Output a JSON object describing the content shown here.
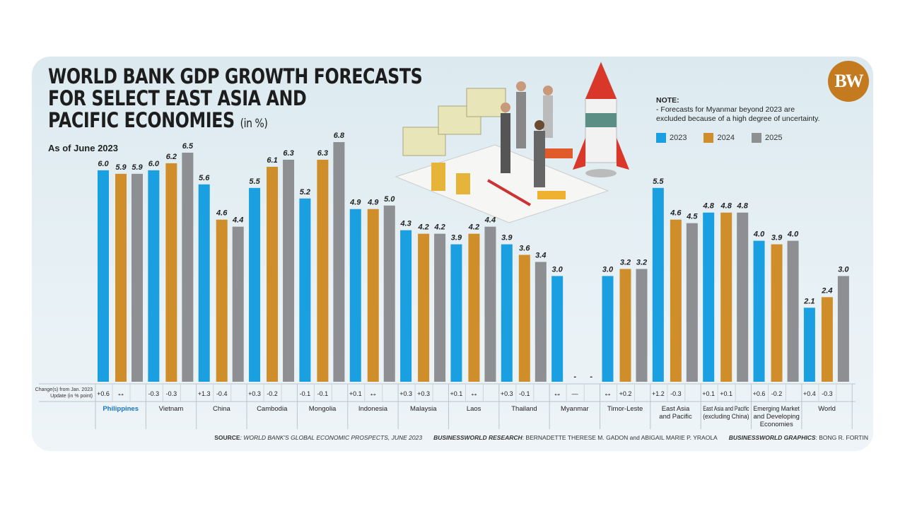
{
  "title_lines": [
    "WORLD BANK GDP GROWTH FORECASTS",
    "FOR SELECT EAST ASIA AND",
    "PACIFIC ECONOMIES"
  ],
  "title_unit": "(in %)",
  "subtitle": "As of June 2023",
  "logo": "BW",
  "note": {
    "heading": "NOTE:",
    "text": "- Forecasts for Myanmar beyond 2023 are excluded because of a high degree of uncertainty."
  },
  "change_row_label": "Change(s) from Jan. 2023 Update (in % point)",
  "footer": {
    "source_label": "SOURCE",
    "source_text": ": WORLD BANK'S GLOBAL ECONOMIC PROSPECTS, JUNE 2023",
    "research_label": "BUSINESSWORLD RESEARCH",
    "research_text": ": BERNADETTE THERESE M. GADON and ABIGAIL MARIE P. YRAOLA",
    "graphics_label": "BUSINESSWORLD GRAPHICS",
    "graphics_text": ": BONG R. FORTIN"
  },
  "chart_data": {
    "type": "bar",
    "ylim": [
      0,
      7
    ],
    "grid": false,
    "legend_placement": "top-right",
    "series": [
      {
        "name": "2023",
        "color": "#1aa0e0",
        "values": [
          6.0,
          6.0,
          5.6,
          5.5,
          5.2,
          4.9,
          4.3,
          3.9,
          3.9,
          3.0,
          3.0,
          5.5,
          4.8,
          4.0,
          2.1
        ]
      },
      {
        "name": "2024",
        "color": "#d08e2a",
        "values": [
          5.9,
          6.2,
          4.6,
          6.1,
          6.3,
          4.9,
          4.2,
          4.2,
          3.6,
          null,
          3.2,
          4.6,
          4.8,
          3.9,
          2.4
        ]
      },
      {
        "name": "2025",
        "color": "#8e8f92",
        "values": [
          5.9,
          6.5,
          4.4,
          6.3,
          6.8,
          5.0,
          4.2,
          4.4,
          3.4,
          null,
          3.2,
          4.5,
          4.8,
          4.0,
          3.0
        ]
      }
    ],
    "categories": [
      "Philippines",
      "Vietnam",
      "China",
      "Cambodia",
      "Mongolia",
      "Indonesia",
      "Malaysia",
      "Laos",
      "Thailand",
      "Myanmar",
      "Timor-Leste",
      "East Asia and Pacific",
      "East Asia and Pacific (excluding China)",
      "Emerging Market and Developing Economies",
      "World"
    ],
    "category_label_lines": [
      [
        "Philippines"
      ],
      [
        "Vietnam"
      ],
      [
        "China"
      ],
      [
        "Cambodia"
      ],
      [
        "Mongolia"
      ],
      [
        "Indonesia"
      ],
      [
        "Malaysia"
      ],
      [
        "Laos"
      ],
      [
        "Thailand"
      ],
      [
        "Myanmar"
      ],
      [
        "Timor-Leste"
      ],
      [
        "East Asia",
        "and Pacific"
      ],
      [
        "East Asia and Pacific",
        "(excluding China)"
      ],
      [
        "Emerging Market",
        "and Developing",
        "Economies"
      ],
      [
        "World"
      ]
    ],
    "missing_label": "-",
    "highlight_category": "Philippines",
    "highlight_color": "#1a74c0",
    "changes": [
      [
        "+0.6",
        "↔",
        ""
      ],
      [
        "-0.3",
        "-0.3",
        ""
      ],
      [
        "+1.3",
        "-0.4",
        ""
      ],
      [
        "+0.3",
        "-0.2",
        ""
      ],
      [
        "-0.1",
        "-0.1",
        ""
      ],
      [
        "+0.1",
        "↔",
        ""
      ],
      [
        "+0.3",
        "+0.3",
        ""
      ],
      [
        "+0.1",
        "↔",
        ""
      ],
      [
        "+0.3",
        "-0.1",
        ""
      ],
      [
        "↔",
        "—",
        ""
      ],
      [
        "↔",
        "+0.2",
        ""
      ],
      [
        "+1.2",
        "-0.3",
        ""
      ],
      [
        "+0.1",
        "+0.1",
        ""
      ],
      [
        "+0.6",
        "-0.2",
        ""
      ],
      [
        "+0.4",
        "-0.3",
        ""
      ]
    ]
  }
}
